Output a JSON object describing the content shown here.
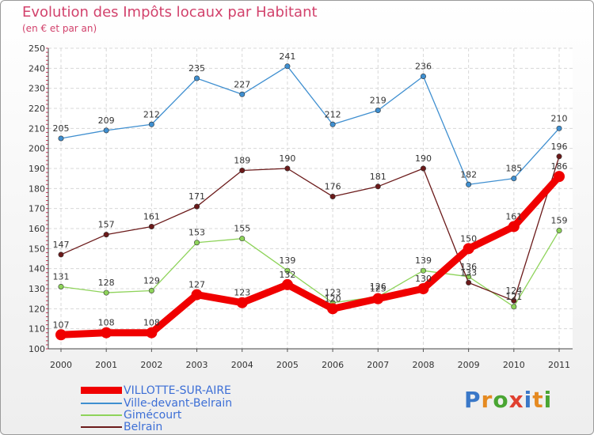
{
  "title": "Evolution des Impôts locaux par Habitant",
  "subtitle": "(en € et par an)",
  "logo": {
    "text": "Proxiti",
    "letters": [
      {
        "ch": "P",
        "color": "#3a78c8"
      },
      {
        "ch": "r",
        "color": "#e58a21"
      },
      {
        "ch": "o",
        "color": "#49a532"
      },
      {
        "ch": "x",
        "color": "#e04030"
      },
      {
        "ch": "i",
        "color": "#3a78c8"
      },
      {
        "ch": "t",
        "color": "#e58a21"
      },
      {
        "ch": "i",
        "color": "#49a532"
      }
    ]
  },
  "chart_data": {
    "type": "line",
    "x": [
      "2000",
      "2001",
      "2002",
      "2003",
      "2004",
      "2005",
      "2006",
      "2007",
      "2008",
      "2009",
      "2010",
      "2011"
    ],
    "ylim": [
      100,
      250
    ],
    "yticks": [
      100,
      110,
      120,
      130,
      140,
      150,
      160,
      170,
      180,
      190,
      200,
      210,
      220,
      230,
      240,
      250
    ],
    "grid": true,
    "legend_position": "bottom-left",
    "series": [
      {
        "name": "VILLOTTE-SUR-AIRE",
        "color": "#f00000",
        "values": [
          107,
          108,
          108,
          127,
          123,
          132,
          120,
          125,
          130,
          150,
          161,
          186
        ]
      },
      {
        "name": "Ville-devant-Belrain",
        "color": "#3f8fd0",
        "values": [
          205,
          209,
          212,
          235,
          227,
          241,
          212,
          219,
          236,
          182,
          185,
          210
        ]
      },
      {
        "name": "Gimécourt",
        "color": "#8ed35a",
        "values": [
          131,
          128,
          129,
          153,
          155,
          139,
          123,
          126,
          139,
          136,
          121,
          159
        ]
      },
      {
        "name": "Belrain",
        "color": "#6b1a1a",
        "values": [
          147,
          157,
          161,
          171,
          189,
          190,
          176,
          181,
          190,
          133,
          124,
          196
        ]
      }
    ],
    "data_labels": [
      [
        "107",
        "108",
        "108",
        "127",
        "123",
        "132",
        "120",
        "125",
        "130",
        "150",
        "161",
        "186"
      ],
      [
        "205",
        "209",
        "212",
        "235",
        "227",
        "241",
        "212",
        "219",
        "236",
        "182",
        "185",
        "210"
      ],
      [
        "131",
        "128",
        "129",
        "153",
        "155",
        "139",
        "123",
        "126",
        "139",
        "136",
        "121",
        "159"
      ],
      [
        "147",
        "157",
        "161",
        "171",
        "189",
        "190",
        "176",
        "181",
        "190",
        "133",
        "124",
        "196"
      ]
    ]
  }
}
